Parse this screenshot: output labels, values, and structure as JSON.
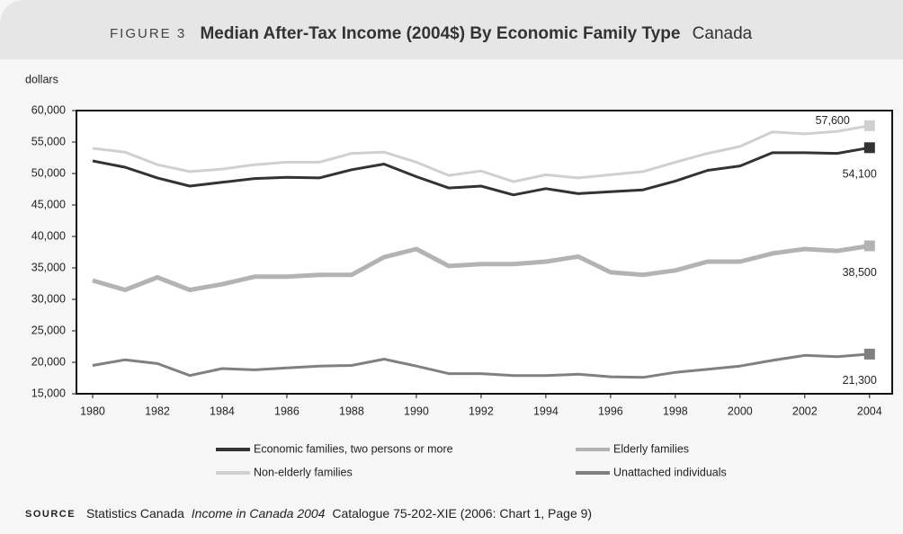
{
  "chart_data": {
    "type": "line",
    "figure_label": "FIGURE 3",
    "title": "Median After-Tax Income (2004$) By Economic Family Type",
    "subtitle": "Canada",
    "ylabel": "dollars",
    "x": [
      1980,
      1981,
      1982,
      1983,
      1984,
      1985,
      1986,
      1987,
      1988,
      1989,
      1990,
      1991,
      1992,
      1993,
      1994,
      1995,
      1996,
      1997,
      1998,
      1999,
      2000,
      2001,
      2002,
      2003,
      2004
    ],
    "xlim": [
      1979.5,
      2004.7
    ],
    "xticks": [
      1980,
      1982,
      1984,
      1986,
      1988,
      1990,
      1992,
      1994,
      1996,
      1998,
      2000,
      2002,
      2004
    ],
    "ylim": [
      15000,
      60000
    ],
    "yticks": [
      {
        "value": 15000,
        "label": "15,000"
      },
      {
        "value": 20000,
        "label": "20,000"
      },
      {
        "value": 25000,
        "label": "25,000"
      },
      {
        "value": 30000,
        "label": "30,000"
      },
      {
        "value": 35000,
        "label": "35,000"
      },
      {
        "value": 40000,
        "label": "40,000"
      },
      {
        "value": 45000,
        "label": "45,000"
      },
      {
        "value": 50000,
        "label": "50,000"
      },
      {
        "value": 55000,
        "label": "55,000"
      },
      {
        "value": 60000,
        "label": "60,000"
      }
    ],
    "grid": false,
    "series": [
      {
        "name": "Economic families, two persons or more",
        "color": "#333333",
        "values": [
          52000,
          51000,
          49300,
          48000,
          48600,
          49200,
          49400,
          49300,
          50600,
          51500,
          49500,
          47700,
          48000,
          46600,
          47600,
          46800,
          47100,
          47400,
          48800,
          50500,
          51200,
          53300,
          53300,
          53200,
          54100
        ],
        "value_labels": [
          null,
          null,
          null,
          null,
          null,
          null,
          null,
          null,
          null,
          null,
          null,
          null,
          null,
          null,
          null,
          null,
          null,
          null,
          null,
          null,
          null,
          null,
          null,
          null,
          "54,100"
        ]
      },
      {
        "name": "Elderly families",
        "color": "#b3b3b3",
        "values": [
          33000,
          31500,
          33500,
          31500,
          32400,
          33600,
          33600,
          33900,
          33900,
          36700,
          38000,
          35300,
          35600,
          35600,
          36000,
          36800,
          34300,
          33900,
          34600,
          36000,
          36000,
          37300,
          38000,
          37700,
          38500
        ],
        "value_labels": [
          null,
          null,
          null,
          null,
          null,
          null,
          null,
          null,
          null,
          null,
          null,
          null,
          null,
          null,
          null,
          null,
          null,
          null,
          null,
          null,
          null,
          null,
          null,
          null,
          "38,500"
        ]
      },
      {
        "name": "Non-elderly families",
        "color": "#d0d0d0",
        "values": [
          54000,
          53400,
          51400,
          50300,
          50700,
          51400,
          51800,
          51800,
          53200,
          53400,
          51800,
          49700,
          50400,
          48700,
          49800,
          49300,
          49800,
          50300,
          51800,
          53200,
          54300,
          56600,
          56300,
          56700,
          57600
        ],
        "value_labels": [
          null,
          null,
          null,
          null,
          null,
          null,
          null,
          null,
          null,
          null,
          null,
          null,
          null,
          null,
          null,
          null,
          null,
          null,
          null,
          null,
          null,
          null,
          null,
          null,
          "57,600"
        ]
      },
      {
        "name": "Unattached individuals",
        "color": "#808080",
        "values": [
          19500,
          20400,
          19800,
          17900,
          19000,
          18800,
          19100,
          19400,
          19500,
          20500,
          19400,
          18200,
          18200,
          17900,
          17900,
          18100,
          17700,
          17600,
          18400,
          18900,
          19400,
          20300,
          21100,
          20900,
          21300
        ],
        "value_labels": [
          null,
          null,
          null,
          null,
          null,
          null,
          null,
          null,
          null,
          null,
          null,
          null,
          null,
          null,
          null,
          null,
          null,
          null,
          null,
          null,
          null,
          null,
          null,
          null,
          "21,300"
        ]
      }
    ],
    "source": {
      "label": "SOURCE",
      "text1": "Statistics Canada",
      "italic": "Income in Canada 2004",
      "text2": "Catalogue 75-202-XIE (2006: Chart 1, Page 9)"
    }
  }
}
